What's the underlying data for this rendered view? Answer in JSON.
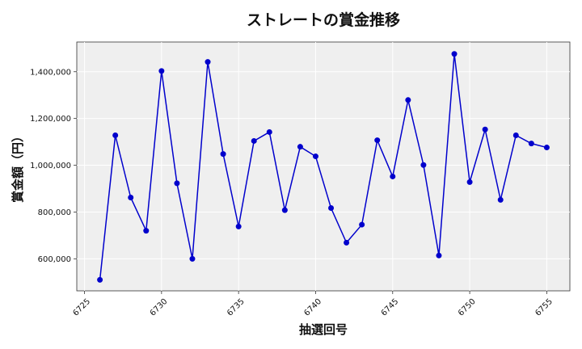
{
  "chart_data": {
    "type": "line",
    "title": "ストレートの賞金推移",
    "xlabel": "抽選回号",
    "ylabel": "賞金額（円）",
    "x": [
      6726,
      6727,
      6728,
      6729,
      6730,
      6731,
      6732,
      6733,
      6734,
      6735,
      6736,
      6737,
      6738,
      6739,
      6740,
      6741,
      6742,
      6743,
      6744,
      6745,
      6746,
      6747,
      6748,
      6749,
      6750,
      6751,
      6752,
      6753,
      6754,
      6755
    ],
    "series": [
      {
        "values": [
          510000,
          1128000,
          862000,
          720000,
          1403000,
          923000,
          600000,
          1442000,
          1048000,
          738000,
          1104000,
          1142000,
          808000,
          1079000,
          1038000,
          817000,
          669000,
          746000,
          1107000,
          952000,
          1279000,
          1001000,
          614000,
          1476000,
          928000,
          1153000,
          852000,
          1128000,
          1093000,
          1076000
        ],
        "color": "#0000cc"
      }
    ],
    "xticks": [
      "6725",
      "6730",
      "6735",
      "6740",
      "6745",
      "6750",
      "6755"
    ],
    "yticks": [
      "600,000",
      "800,000",
      "1,000,000",
      "1,200,000",
      "1,400,000"
    ],
    "xlim": [
      6724.5,
      6756.5
    ],
    "ylim": [
      463000,
      1527000
    ],
    "grid": true,
    "plot_background": "#efefef"
  }
}
